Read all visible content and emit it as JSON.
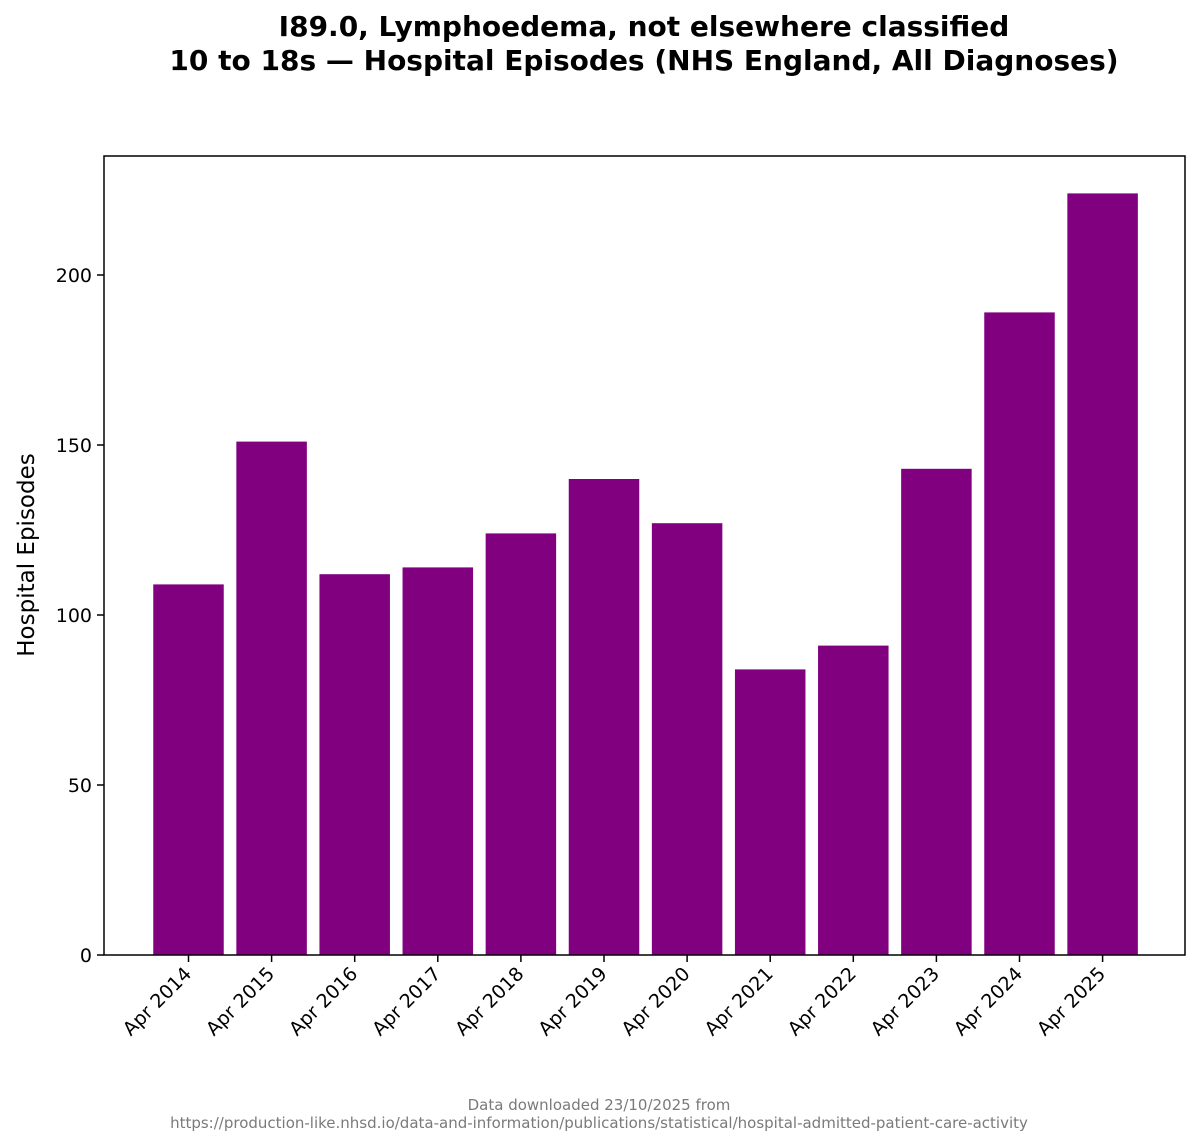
{
  "chart_data": {
    "type": "bar",
    "title_line1": "I89.0, Lymphoedema, not elsewhere classified",
    "title_line2": "10 to 18s — Hospital Episodes (NHS England, All Diagnoses)",
    "xlabel": "",
    "ylabel": "Hospital Episodes",
    "categories": [
      "Apr 2014",
      "Apr 2015",
      "Apr 2016",
      "Apr 2017",
      "Apr 2018",
      "Apr 2019",
      "Apr 2020",
      "Apr 2021",
      "Apr 2022",
      "Apr 2023",
      "Apr 2024",
      "Apr 2025"
    ],
    "values": [
      109,
      151,
      112,
      114,
      124,
      140,
      127,
      84,
      91,
      143,
      189,
      224
    ],
    "ylim": [
      0,
      235
    ],
    "yticks": [
      0,
      50,
      100,
      150,
      200
    ],
    "bar_color": "#800080",
    "grid": false,
    "legend": "none"
  },
  "footer": {
    "line1": "Data downloaded 23/10/2025 from",
    "line2": "https://production-like.nhsd.io/data-and-information/publications/statistical/hospital-admitted-patient-care-activity"
  }
}
